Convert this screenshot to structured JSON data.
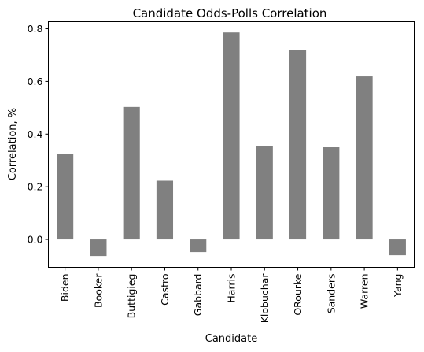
{
  "chart_data": {
    "type": "bar",
    "title": "Candidate Odds-Polls Correlation",
    "xlabel": "Candidate",
    "ylabel": "Correlation, %",
    "categories": [
      "Biden",
      "Booker",
      "Buttigieg",
      "Castro",
      "Gabbard",
      "Harris",
      "Klobuchar",
      "ORourke",
      "Sanders",
      "Warren",
      "Yang"
    ],
    "values": [
      0.326,
      -0.063,
      0.503,
      0.223,
      -0.048,
      0.786,
      0.354,
      0.719,
      0.35,
      0.619,
      -0.06
    ],
    "ylim": [
      -0.106,
      0.827
    ],
    "yticks": [
      0.0,
      0.2,
      0.4,
      0.6,
      0.8
    ],
    "ytick_labels": [
      "0.0",
      "0.2",
      "0.4",
      "0.6",
      "0.8"
    ],
    "bar_color": "#808080",
    "grid": false,
    "legend": "none"
  }
}
